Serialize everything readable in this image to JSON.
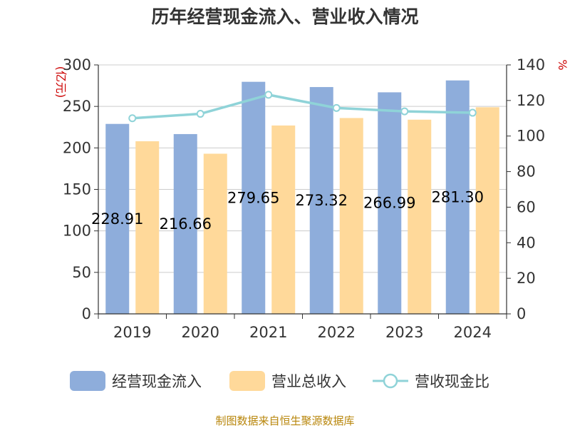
{
  "chart_data": {
    "type": "bar",
    "title": "历年经营现金流入、营业收入情况",
    "categories": [
      "2019",
      "2020",
      "2021",
      "2022",
      "2023",
      "2024"
    ],
    "series": [
      {
        "name": "经营现金流入",
        "type": "bar",
        "axis": "left",
        "color": "#8eaddb",
        "values": [
          228.91,
          216.66,
          279.65,
          273.32,
          266.99,
          281.3
        ],
        "labels": [
          "228.91",
          "216.66",
          "279.65",
          "273.32",
          "266.99",
          "281.30"
        ]
      },
      {
        "name": "营业总收入",
        "type": "bar",
        "axis": "left",
        "color": "#ffd99a",
        "values": [
          208,
          193,
          227,
          236,
          234,
          249
        ]
      },
      {
        "name": "营收现金比",
        "type": "line",
        "axis": "right",
        "color": "#8fd3d8",
        "values": [
          110,
          112.5,
          123.2,
          115.8,
          113.9,
          113.1
        ]
      }
    ],
    "y_left": {
      "unit": "(亿元)",
      "min": 0,
      "max": 300,
      "ticks": [
        0,
        50,
        100,
        150,
        200,
        250,
        300
      ]
    },
    "y_right": {
      "unit": "%",
      "min": 0,
      "max": 140,
      "ticks": [
        0,
        20,
        40,
        60,
        80,
        100,
        120,
        140
      ]
    },
    "grid": true,
    "legend_position": "bottom",
    "source": "制图数据来自恒生聚源数据库"
  }
}
